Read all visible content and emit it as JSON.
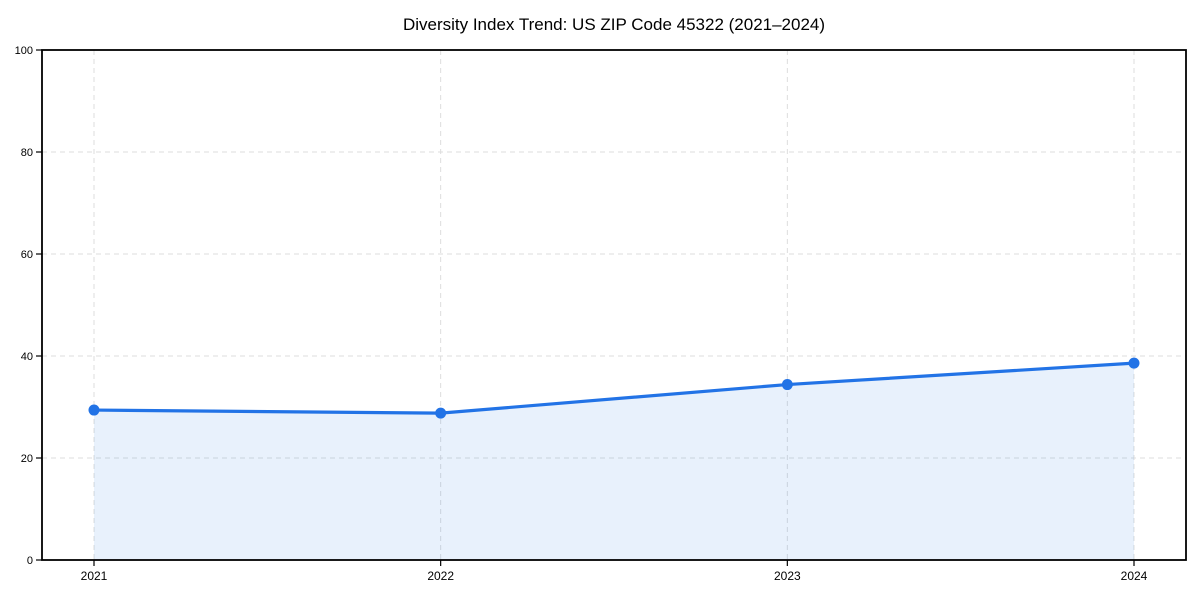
{
  "chart_data": {
    "type": "area",
    "title": "Diversity Index Trend: US ZIP Code 45322 (2021–2024)",
    "categories": [
      "2021",
      "2022",
      "2023",
      "2024"
    ],
    "series": [
      {
        "name": "Diversity Index",
        "values": [
          29.4,
          28.8,
          34.4,
          38.6
        ]
      }
    ],
    "xlabel": "",
    "ylabel": "",
    "ylim": [
      0,
      100
    ],
    "yticks": [
      0,
      20,
      40,
      60,
      80,
      100
    ],
    "grid": "dashed-both-axes",
    "legend": "none",
    "colors": {
      "line": "#2273e6",
      "marker": "#2273e6",
      "area_fill": "rgba(34,115,230,0.10)",
      "gridline": "#dddddd",
      "axis": "#000000",
      "background": "#ffffff",
      "text": "#000000"
    }
  }
}
